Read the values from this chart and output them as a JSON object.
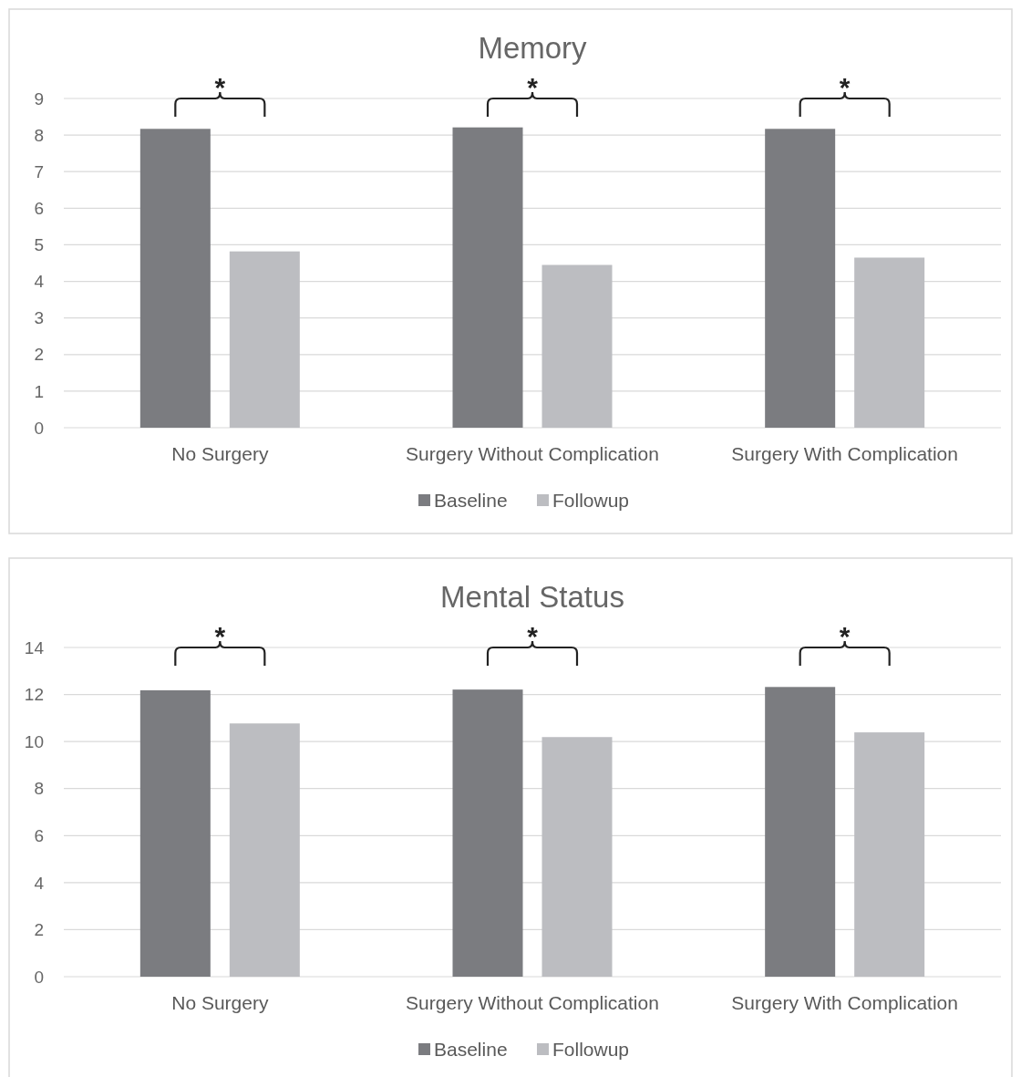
{
  "chart_data": [
    {
      "type": "bar",
      "title": "Memory",
      "categories": [
        "No Surgery",
        "Surgery Without Complication",
        "Surgery With Complication"
      ],
      "series": [
        {
          "name": "Baseline",
          "color": "#7b7c80",
          "values": [
            8.17,
            8.21,
            8.17
          ]
        },
        {
          "name": "Followup",
          "color": "#bcbdc1",
          "values": [
            4.82,
            4.45,
            4.65
          ]
        }
      ],
      "ylim": [
        0,
        9
      ],
      "yticks": [
        0,
        1,
        2,
        3,
        4,
        5,
        6,
        7,
        8,
        9
      ],
      "grid": "y",
      "legend": "bottom",
      "annotations": [
        "*",
        "*",
        "*"
      ]
    },
    {
      "type": "bar",
      "title": "Mental Status",
      "categories": [
        "No Surgery",
        "Surgery Without Complication",
        "Surgery With Complication"
      ],
      "series": [
        {
          "name": "Baseline",
          "color": "#7b7c80",
          "values": [
            12.18,
            12.21,
            12.32
          ]
        },
        {
          "name": "Followup",
          "color": "#bcbdc1",
          "values": [
            10.77,
            10.19,
            10.39
          ]
        }
      ],
      "ylim": [
        0,
        14
      ],
      "yticks": [
        0,
        2,
        4,
        6,
        8,
        10,
        12,
        14
      ],
      "grid": "y",
      "legend": "bottom",
      "annotations": [
        "*",
        "*",
        "*"
      ]
    }
  ]
}
